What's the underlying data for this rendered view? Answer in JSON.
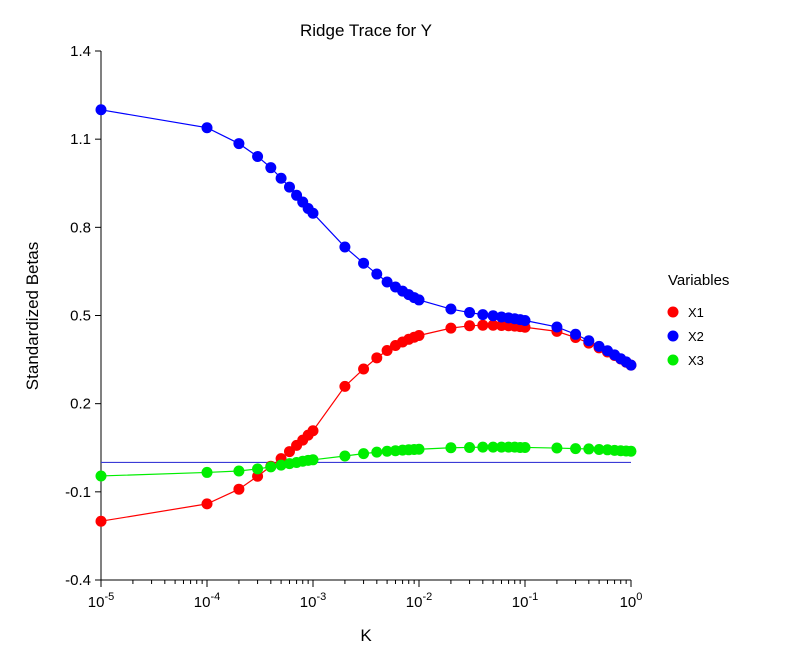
{
  "chart_data": {
    "type": "line",
    "title": "Ridge Trace for Y",
    "xlabel": "K",
    "ylabel": "Standardized Betas",
    "x_scale": "log",
    "xlim": [
      1e-05,
      1
    ],
    "ylim": [
      -0.4,
      1.4
    ],
    "x_tick_labels": [
      {
        "base": "10",
        "exp": "-5"
      },
      {
        "base": "10",
        "exp": "-4"
      },
      {
        "base": "10",
        "exp": "-3"
      },
      {
        "base": "10",
        "exp": "-2"
      },
      {
        "base": "10",
        "exp": "-1"
      },
      {
        "base": "10",
        "exp": "0"
      }
    ],
    "y_ticks": [
      -0.4,
      -0.1,
      0.2,
      0.5,
      0.8,
      1.1,
      1.4
    ],
    "y_tick_labels": [
      "-0.4",
      "-0.1",
      "0.2",
      "0.5",
      "0.8",
      "1.1",
      "1.4"
    ],
    "reference_line": {
      "y": 0.0,
      "color": "#3b3bd6"
    },
    "legend": {
      "title": "Variables",
      "position": "right"
    },
    "x": [
      1e-05,
      0.0001,
      0.0002,
      0.0003,
      0.0004,
      0.0005,
      0.0006,
      0.0007,
      0.0008,
      0.0009,
      0.001,
      0.002,
      0.003,
      0.004,
      0.005,
      0.006,
      0.007,
      0.008,
      0.009,
      0.01,
      0.02,
      0.03,
      0.04,
      0.05,
      0.06,
      0.07,
      0.08,
      0.09,
      0.1,
      0.2,
      0.3,
      0.4,
      0.5,
      0.6,
      0.7,
      0.8,
      0.9,
      1.0
    ],
    "series": [
      {
        "name": "X1",
        "color": "#ff0000",
        "values": [
          -0.2,
          -0.141,
          -0.091,
          -0.047,
          -0.013,
          0.013,
          0.037,
          0.058,
          0.076,
          0.093,
          0.108,
          0.259,
          0.318,
          0.356,
          0.381,
          0.398,
          0.41,
          0.419,
          0.426,
          0.432,
          0.457,
          0.465,
          0.467,
          0.467,
          0.466,
          0.465,
          0.464,
          0.462,
          0.46,
          0.446,
          0.425,
          0.406,
          0.39,
          0.376,
          0.364,
          0.352,
          0.341,
          0.331
        ]
      },
      {
        "name": "X2",
        "color": "#0000ff",
        "values": [
          1.2,
          1.139,
          1.085,
          1.041,
          1.003,
          0.967,
          0.937,
          0.909,
          0.886,
          0.864,
          0.848,
          0.733,
          0.678,
          0.641,
          0.614,
          0.597,
          0.583,
          0.571,
          0.561,
          0.553,
          0.522,
          0.51,
          0.503,
          0.499,
          0.495,
          0.492,
          0.489,
          0.486,
          0.483,
          0.461,
          0.436,
          0.414,
          0.395,
          0.38,
          0.366,
          0.353,
          0.342,
          0.331
        ]
      },
      {
        "name": "X3",
        "color": "#00ee00",
        "values": [
          -0.046,
          -0.034,
          -0.029,
          -0.022,
          -0.015,
          -0.009,
          -0.004,
          0.0,
          0.004,
          0.007,
          0.009,
          0.022,
          0.03,
          0.035,
          0.038,
          0.04,
          0.042,
          0.043,
          0.044,
          0.045,
          0.05,
          0.051,
          0.052,
          0.052,
          0.052,
          0.052,
          0.052,
          0.051,
          0.051,
          0.049,
          0.047,
          0.046,
          0.044,
          0.043,
          0.041,
          0.04,
          0.039,
          0.038
        ]
      }
    ]
  }
}
